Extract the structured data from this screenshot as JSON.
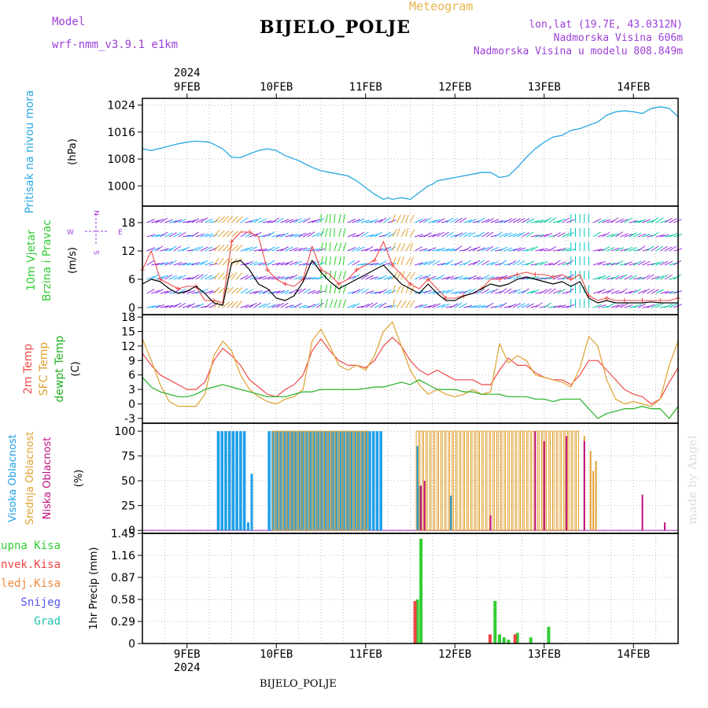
{
  "header": {
    "meteogram": "Meteogram",
    "title": "BIJELO_POLJE",
    "model_label": "Model",
    "model_value": "wrf-nmm_v3.9.1  e1km",
    "lonlat": "lon,lat (19.7E, 43.0312N)",
    "elevation": "Nadmorska Visina 606m",
    "elevation_model": "Nadmorska Visina u modelu 808.849m",
    "footer": "BIJELO_POLJE",
    "watermark": "made by Angel"
  },
  "colors": {
    "pressure": "#27a7e0",
    "wind_speed": "#000000",
    "wind_gust": "#ef4a4a",
    "temp_2m": "#ef4a4a",
    "temp_sfc": "#e0a030",
    "dewpoint": "#22b022",
    "cloud_high": "#1ea0e8",
    "cloud_mid": "#e0a030",
    "cloud_low": "#c01080",
    "precip_total": "#33cc33",
    "precip_conv": "#ef4444",
    "purple_label": "#9b3fd8"
  },
  "chart_data": [
    {
      "type": "line",
      "panel": "pressure",
      "ylabel_left": "Pritisak na nivou mora",
      "unit": "(hPa)",
      "yticks": [
        "1024",
        "1016",
        "1008",
        "1000"
      ],
      "ylim": [
        994,
        1026
      ],
      "xlim_days": [
        8.5,
        14.5
      ],
      "day_labels_top": [
        "9FEB",
        "10FEB",
        "11FEB",
        "12FEB",
        "13FEB",
        "14FEB"
      ],
      "year_top": "2024",
      "series": [
        {
          "x": [
            8.5,
            8.6,
            8.75,
            8.9,
            9.0,
            9.1,
            9.25,
            9.4,
            9.5,
            9.6,
            9.7,
            9.8,
            9.9,
            10.0,
            10.1,
            10.25,
            10.4,
            10.5,
            10.6,
            10.7,
            10.8,
            10.9,
            11.0,
            11.1,
            11.2,
            11.25,
            11.3,
            11.4,
            11.5,
            11.6,
            11.7,
            11.75,
            11.8,
            11.9,
            12.0,
            12.1,
            12.2,
            12.3,
            12.4,
            12.5,
            12.6,
            12.7,
            12.8,
            12.9,
            13.0,
            13.1,
            13.2,
            13.3,
            13.4,
            13.5,
            13.6,
            13.7,
            13.8,
            13.9,
            14.0,
            14.1,
            14.2,
            14.3,
            14.4,
            14.5
          ],
          "y": [
            1011,
            1010.5,
            1011.5,
            1012.5,
            1013,
            1013.3,
            1013,
            1011,
            1008.5,
            1008.4,
            1009.5,
            1010.5,
            1011,
            1010.5,
            1009,
            1007.5,
            1005.5,
            1004.5,
            1004,
            1003.5,
            1003,
            1001.5,
            999.5,
            997.5,
            996,
            996.5,
            996,
            996.5,
            996,
            998,
            1000,
            1000.5,
            1001.5,
            1002,
            1002.5,
            1003,
            1003.5,
            1004,
            1004,
            1002.5,
            1003,
            1005.5,
            1008.5,
            1011,
            1013,
            1014.5,
            1015,
            1016.5,
            1017,
            1018,
            1019,
            1021,
            1022,
            1022.3,
            1022,
            1021.5,
            1023,
            1023.5,
            1023,
            1020.5
          ]
        }
      ]
    },
    {
      "type": "line",
      "panel": "wind",
      "ylabel_left": [
        "10m Vjetar",
        "Brzina i Pravac"
      ],
      "unit": "(m/s)",
      "compass": [
        "N",
        "W",
        "E",
        "S"
      ],
      "yticks": [
        "18",
        "12",
        "6",
        "0"
      ],
      "ylim": [
        -1.5,
        21.5
      ],
      "series": [
        {
          "name": "speed",
          "x": [
            8.5,
            8.6,
            8.7,
            8.8,
            8.9,
            9.0,
            9.1,
            9.2,
            9.3,
            9.4,
            9.5,
            9.6,
            9.7,
            9.8,
            9.9,
            10.0,
            10.1,
            10.2,
            10.3,
            10.4,
            10.5,
            10.6,
            10.7,
            10.8,
            10.9,
            11.0,
            11.1,
            11.2,
            11.3,
            11.4,
            11.5,
            11.6,
            11.7,
            11.8,
            11.9,
            12.0,
            12.1,
            12.2,
            12.3,
            12.4,
            12.5,
            12.6,
            12.7,
            12.8,
            12.9,
            13.0,
            13.1,
            13.2,
            13.3,
            13.4,
            13.5,
            13.6,
            13.7,
            13.8,
            13.9,
            14.0,
            14.1,
            14.2,
            14.3,
            14.4,
            14.5
          ],
          "y": [
            5,
            6,
            5.5,
            4,
            3,
            3.5,
            4.5,
            3,
            1,
            0.5,
            9.5,
            10,
            8,
            5,
            4,
            2,
            1.5,
            2.5,
            5.5,
            10,
            7.5,
            5.5,
            4,
            5,
            6,
            7,
            8,
            9,
            7,
            5,
            4,
            3,
            5,
            3,
            1.5,
            1.5,
            2.5,
            3,
            4,
            5,
            4.5,
            5,
            6,
            6.5,
            6,
            5.5,
            5,
            5.5,
            4.5,
            5.5,
            2,
            1,
            1.5,
            1,
            1,
            1,
            1,
            1.2,
            1,
            1,
            1
          ]
        },
        {
          "name": "gust",
          "x": [
            8.5,
            8.6,
            8.7,
            8.8,
            8.9,
            9.0,
            9.1,
            9.2,
            9.3,
            9.4,
            9.5,
            9.6,
            9.7,
            9.8,
            9.9,
            10.0,
            10.1,
            10.2,
            10.3,
            10.4,
            10.5,
            10.6,
            10.7,
            10.8,
            10.9,
            11.0,
            11.1,
            11.2,
            11.3,
            11.4,
            11.5,
            11.6,
            11.7,
            11.8,
            11.9,
            12.0,
            12.1,
            12.2,
            12.3,
            12.4,
            12.5,
            12.6,
            12.7,
            12.8,
            12.9,
            13.0,
            13.1,
            13.2,
            13.3,
            13.4,
            13.5,
            13.6,
            13.7,
            13.8,
            13.9,
            14.0,
            14.1,
            14.2,
            14.3,
            14.4,
            14.5
          ],
          "y": [
            8,
            12,
            6,
            5,
            4,
            4.5,
            4.5,
            1.5,
            1.5,
            1,
            14,
            16,
            16,
            15,
            8,
            6,
            5,
            4.5,
            6,
            13,
            8,
            7,
            5,
            6,
            8,
            9,
            10,
            14,
            9,
            7,
            5,
            4,
            6,
            4,
            2,
            2,
            2.5,
            3,
            4,
            6,
            6,
            6.5,
            7,
            7.5,
            7,
            7,
            6.5,
            7,
            6,
            7,
            2.5,
            1.5,
            2,
            1.5,
            1.5,
            1.5,
            1.5,
            1.5,
            1.5,
            1.5,
            2
          ]
        }
      ],
      "barbs_levels": [
        18,
        15,
        12,
        9,
        6,
        3,
        0
      ]
    },
    {
      "type": "line",
      "panel": "temperature",
      "ylabel_left": [
        "2m Temp",
        "SFC Temp",
        "dewpt Temp"
      ],
      "unit": "(C)",
      "yticks": [
        "18",
        "15",
        "12",
        "9",
        "6",
        "3",
        "0",
        "-3"
      ],
      "ylim": [
        -4,
        18.5
      ],
      "series": [
        {
          "name": "2m Temp",
          "x": [
            8.5,
            8.6,
            8.7,
            8.8,
            8.9,
            9.0,
            9.1,
            9.2,
            9.3,
            9.4,
            9.5,
            9.6,
            9.7,
            9.8,
            9.9,
            10.0,
            10.1,
            10.2,
            10.3,
            10.4,
            10.5,
            10.6,
            10.7,
            10.8,
            10.9,
            11.0,
            11.1,
            11.2,
            11.3,
            11.4,
            11.5,
            11.6,
            11.7,
            11.8,
            11.9,
            12.0,
            12.1,
            12.2,
            12.3,
            12.4,
            12.5,
            12.6,
            12.7,
            12.8,
            12.9,
            13.0,
            13.1,
            13.2,
            13.3,
            13.4,
            13.5,
            13.6,
            13.7,
            13.8,
            13.9,
            14.0,
            14.1,
            14.2,
            14.3,
            14.4,
            14.5
          ],
          "y": [
            10.5,
            8,
            6,
            5,
            4,
            3,
            3,
            4.5,
            9,
            11.5,
            10,
            8,
            5,
            3.5,
            2,
            1.5,
            3,
            4,
            6,
            11,
            13.5,
            11,
            9,
            8,
            8,
            7.5,
            9,
            12,
            13.8,
            12,
            9,
            7,
            6,
            7,
            6,
            5,
            5,
            5,
            4,
            4,
            7,
            9.5,
            8,
            8,
            6.5,
            5.5,
            5,
            5,
            4,
            6,
            9,
            9,
            7,
            5,
            3,
            2,
            1.5,
            0,
            1,
            4.5,
            7.5
          ]
        },
        {
          "name": "SFC Temp",
          "x": [
            8.5,
            8.6,
            8.7,
            8.8,
            8.9,
            9.0,
            9.1,
            9.2,
            9.3,
            9.4,
            9.5,
            9.6,
            9.7,
            9.8,
            9.9,
            10.0,
            10.1,
            10.2,
            10.3,
            10.4,
            10.5,
            10.6,
            10.7,
            10.8,
            10.9,
            11.0,
            11.1,
            11.2,
            11.3,
            11.4,
            11.5,
            11.6,
            11.7,
            11.8,
            11.9,
            12.0,
            12.1,
            12.2,
            12.3,
            12.4,
            12.5,
            12.6,
            12.7,
            12.8,
            12.9,
            13.0,
            13.1,
            13.2,
            13.3,
            13.4,
            13.5,
            13.6,
            13.7,
            13.8,
            13.9,
            14.0,
            14.1,
            14.2,
            14.3,
            14.4,
            14.5
          ],
          "y": [
            13.5,
            9,
            4,
            0.5,
            -0.5,
            -0.5,
            -0.5,
            2,
            10,
            13,
            11,
            6,
            3,
            1.5,
            0.5,
            0,
            1,
            1.5,
            3,
            13,
            15.5,
            12,
            8,
            7,
            8,
            7,
            10,
            15,
            17,
            12,
            7,
            4,
            2,
            3,
            2,
            1.5,
            2,
            3,
            2,
            2.5,
            12.5,
            8.5,
            10,
            9,
            6,
            5.5,
            5,
            4.5,
            3.5,
            7.5,
            14,
            12,
            5,
            1,
            0,
            0.5,
            0,
            -0.5,
            1,
            8,
            13
          ]
        },
        {
          "name": "dewpt Temp",
          "x": [
            8.5,
            8.6,
            8.7,
            8.8,
            8.9,
            9.0,
            9.1,
            9.2,
            9.3,
            9.4,
            9.5,
            9.6,
            9.7,
            9.8,
            9.9,
            10.0,
            10.1,
            10.2,
            10.3,
            10.4,
            10.5,
            10.6,
            10.7,
            10.8,
            10.9,
            11.0,
            11.1,
            11.2,
            11.3,
            11.4,
            11.5,
            11.6,
            11.7,
            11.8,
            11.9,
            12.0,
            12.1,
            12.2,
            12.3,
            12.4,
            12.5,
            12.6,
            12.7,
            12.8,
            12.9,
            13.0,
            13.1,
            13.2,
            13.3,
            13.4,
            13.5,
            13.6,
            13.7,
            13.8,
            13.9,
            14.0,
            14.1,
            14.2,
            14.3,
            14.4,
            14.5
          ],
          "y": [
            5.5,
            3.5,
            2.5,
            2,
            1.5,
            1.5,
            2,
            3,
            3.5,
            4,
            3.5,
            3,
            2.5,
            2,
            1.5,
            1.5,
            1.5,
            2,
            2.5,
            2.5,
            3,
            3,
            3,
            3,
            3,
            3.2,
            3.5,
            3.5,
            4,
            4.5,
            4,
            5,
            4,
            3,
            3,
            3,
            2.5,
            2.5,
            2,
            2,
            2,
            1.5,
            1.5,
            1.5,
            1,
            1,
            0.5,
            1,
            1,
            1,
            -1,
            -3,
            -2,
            -1.5,
            -1,
            -1,
            -0.5,
            -1,
            -1,
            -3,
            -0.5
          ]
        }
      ]
    },
    {
      "type": "bar",
      "panel": "clouds",
      "ylabel_left": [
        "Visoka Oblacnost",
        "Srednja Oblacnost",
        "Niska Oblacnost"
      ],
      "unit": "(%)",
      "yticks": [
        "100",
        "75",
        "50",
        "25",
        "0"
      ],
      "ylim": [
        0,
        100
      ],
      "series": [
        {
          "name": "Visoka Oblacnost",
          "ranges": [
            [
              9.35,
              9.65,
              100
            ],
            [
              9.92,
              11.2,
              100
            ]
          ],
          "extra": [
            [
              9.68,
              8
            ],
            [
              9.72,
              57
            ],
            [
              11.58,
              85
            ],
            [
              11.6,
              45
            ],
            [
              11.95,
              35
            ]
          ]
        },
        {
          "name": "Srednja Oblacnost",
          "ranges": [
            [
              9.97,
              11.05,
              100
            ],
            [
              11.58,
              13.4,
              100
            ]
          ],
          "extra": [
            [
              13.45,
              95
            ],
            [
              13.52,
              80
            ],
            [
              13.55,
              60
            ],
            [
              13.58,
              70
            ]
          ]
        },
        {
          "name": "Niska Oblacnost",
          "ranges": [],
          "extra": [
            [
              11.62,
              45
            ],
            [
              11.66,
              50
            ],
            [
              12.4,
              15
            ],
            [
              12.9,
              100
            ],
            [
              13.0,
              90
            ],
            [
              13.25,
              95
            ],
            [
              13.45,
              90
            ],
            [
              14.1,
              36
            ],
            [
              14.35,
              8
            ]
          ]
        }
      ]
    },
    {
      "type": "bar",
      "panel": "precip",
      "ylabel_left": [
        "Ukupna  Kisa",
        "Konvek.Kisa",
        "Zaledj.Kisa",
        "Snijeg",
        "Grad"
      ],
      "unit": "1hr Precip (mm)",
      "yticks": [
        "1.45",
        "1.16",
        "0.87",
        "0.58",
        "0.29",
        "0"
      ],
      "ylim": [
        0,
        1.45
      ],
      "day_labels_bottom": [
        "9FEB",
        "10FEB",
        "11FEB",
        "12FEB",
        "13FEB",
        "14FEB"
      ],
      "year_bottom": "2024",
      "series": [
        {
          "name": "Ukupna Kisa",
          "bars": [
            [
              11.58,
              0.58
            ],
            [
              11.62,
              1.38
            ],
            [
              12.45,
              0.56
            ],
            [
              12.5,
              0.12
            ],
            [
              12.55,
              0.08
            ],
            [
              12.6,
              0.05
            ],
            [
              12.7,
              0.14
            ],
            [
              12.85,
              0.08
            ],
            [
              13.05,
              0.22
            ]
          ]
        },
        {
          "name": "Konvek.Kisa",
          "bars": [
            [
              11.58,
              0.56
            ],
            [
              12.42,
              0.12
            ],
            [
              12.7,
              0.12
            ]
          ]
        }
      ]
    }
  ]
}
